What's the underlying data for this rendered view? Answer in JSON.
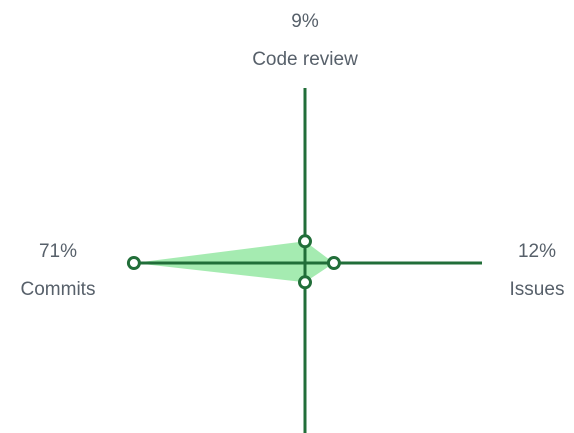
{
  "chart_data": {
    "type": "radar",
    "categories": [
      "Code review",
      "Issues",
      null,
      "Commits"
    ],
    "values": [
      9,
      12,
      8,
      71
    ],
    "value_labels": [
      "9%",
      "12%",
      null,
      "71%"
    ],
    "rlim": [
      0,
      100
    ],
    "color": "#216e39",
    "fill": "#9be9a8"
  }
}
